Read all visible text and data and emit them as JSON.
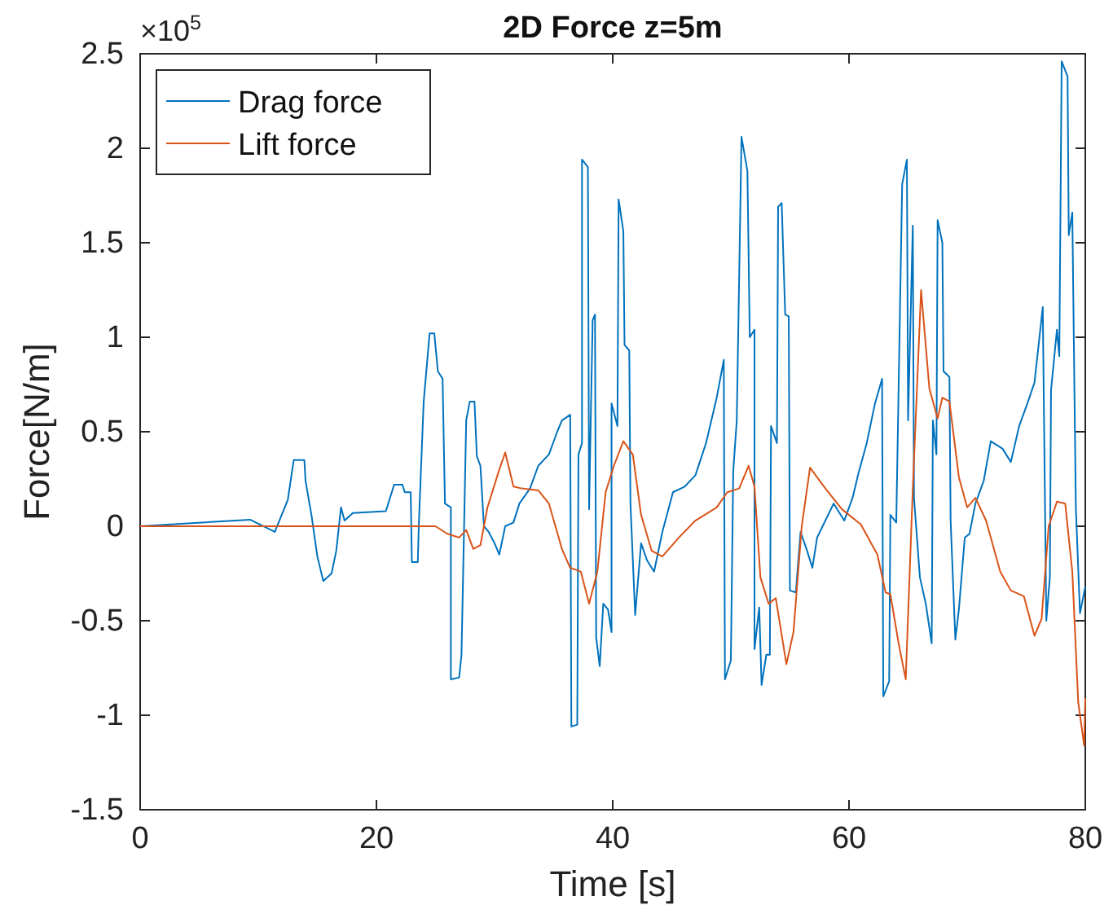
{
  "chart_data": {
    "type": "line",
    "title": "2D Force z=5m",
    "xlabel": "Time [s]",
    "ylabel": "Force[N/m]",
    "annotations": [
      "×10$^{5}$"
    ],
    "xlim": [
      0,
      80
    ],
    "xticks": [
      0,
      20,
      40,
      60,
      80
    ],
    "ylim": [
      -1.5,
      2.5
    ],
    "yticks": [
      -1.5,
      -1,
      -0.5,
      0,
      0.5,
      1,
      1.5,
      2,
      2.5
    ],
    "grid": false,
    "legend": "top left",
    "line_style": "solid",
    "marker": "none",
    "series": [
      {
        "name": "Drag force",
        "color": "#0072bd",
        "x": [
          0,
          9.3,
          11.4,
          12.5,
          12.5,
          13,
          13.9,
          14,
          14.5,
          15,
          15.5,
          16.2,
          16.6,
          17,
          17.3,
          18,
          20.8,
          21.5,
          22.2,
          22.4,
          22.9,
          23,
          23.5,
          23.6,
          24,
          24.5,
          24.9,
          25.2,
          25.6,
          25.8,
          26.3,
          26.3,
          27,
          27.2,
          27.6,
          27.9,
          28.3,
          28.5,
          28.8,
          29.1,
          29.5,
          30,
          30.4,
          30.9,
          31.6,
          32.1,
          33,
          33.7,
          34.6,
          35.3,
          35.7,
          36.4,
          36.5,
          37,
          37.1,
          37.4,
          37.4,
          37.9,
          38,
          38.3,
          38.5,
          38.6,
          38.9,
          39.2,
          39.6,
          39.9,
          39.9,
          40.4,
          40.5,
          40.9,
          41,
          41.4,
          41.5,
          41.9,
          42.4,
          42.9,
          43.5,
          44.2,
          45.1,
          46.1,
          47,
          47.9,
          48.8,
          49.4,
          49.5,
          50,
          50.2,
          50.5,
          50.9,
          51.4,
          51.6,
          52,
          52,
          52.4,
          52.6,
          53,
          53.3,
          53.4,
          53.9,
          54,
          54.3,
          54.6,
          54.9,
          55,
          55.5,
          55.9,
          56.4,
          56.9,
          57.3,
          58,
          58.7,
          59.6,
          60.3,
          60.8,
          61.5,
          62.2,
          62.8,
          62.9,
          63.4,
          63.5,
          64,
          64.5,
          64.9,
          65,
          65.4,
          65.5,
          66,
          66.5,
          67,
          67.1,
          67.4,
          67.5,
          67.9,
          68,
          68.5,
          68.6,
          69,
          69.3,
          69.8,
          70.2,
          70.7,
          71.4,
          72,
          73,
          73.7,
          74.4,
          75.1,
          75.7,
          76.4,
          76.7,
          77,
          77.1,
          77.6,
          77.8,
          78,
          78.5,
          78.6,
          78.9,
          79.2,
          79.55,
          80
        ],
        "values": [
          0,
          0.035,
          -0.03,
          0.14,
          0.14,
          0.35,
          0.35,
          0.24,
          0.06,
          -0.16,
          -0.29,
          -0.25,
          -0.13,
          0.1,
          0.03,
          0.07,
          0.08,
          0.22,
          0.22,
          0.18,
          0.18,
          -0.19,
          -0.19,
          0.03,
          0.66,
          1.02,
          1.02,
          0.82,
          0.78,
          0.12,
          0.1,
          -0.81,
          -0.8,
          -0.68,
          0.56,
          0.66,
          0.66,
          0.37,
          0.32,
          0,
          -0.03,
          -0.09,
          -0.15,
          0,
          0.02,
          0.12,
          0.2,
          0.32,
          0.38,
          0.5,
          0.56,
          0.59,
          -1.06,
          -1.05,
          0.38,
          0.44,
          1.94,
          1.9,
          0.09,
          1.09,
          1.12,
          -0.59,
          -0.74,
          -0.41,
          -0.44,
          -0.56,
          0.65,
          0.53,
          1.73,
          1.56,
          0.96,
          0.93,
          0.12,
          -0.47,
          -0.09,
          -0.18,
          -0.24,
          -0.03,
          0.18,
          0.21,
          0.27,
          0.44,
          0.68,
          0.88,
          -0.81,
          -0.71,
          0.29,
          0.56,
          2.06,
          1.88,
          1,
          1.04,
          -0.65,
          -0.43,
          -0.84,
          -0.68,
          -0.68,
          0.53,
          0.44,
          1.69,
          1.71,
          1.12,
          1.11,
          -0.34,
          -0.35,
          -0.03,
          -0.12,
          -0.22,
          -0.06,
          0.03,
          0.12,
          0.03,
          0.15,
          0.28,
          0.44,
          0.65,
          0.78,
          -0.9,
          -0.82,
          0.06,
          0.02,
          1.81,
          1.94,
          0.56,
          1.59,
          0.15,
          -0.27,
          -0.41,
          -0.62,
          0.56,
          0.38,
          1.62,
          1.5,
          0.82,
          0.79,
          0.03,
          -0.6,
          -0.44,
          -0.06,
          -0.04,
          0.12,
          0.24,
          0.45,
          0.41,
          0.34,
          0.53,
          0.65,
          0.76,
          1.16,
          -0.5,
          -0.27,
          0.72,
          1.04,
          0.9,
          2.46,
          2.38,
          1.54,
          1.66,
          0.1,
          -0.46,
          -0.32
        ]
      },
      {
        "name": "Lift force",
        "color": "#d95319",
        "x": [
          0,
          25,
          26,
          27,
          27.6,
          28.2,
          28.8,
          29.4,
          30.4,
          30.9,
          31.6,
          32.3,
          33.7,
          34.6,
          35.7,
          36.4,
          37.3,
          38,
          38.7,
          39.4,
          40.1,
          40.9,
          41.7,
          42.4,
          43.3,
          44.2,
          45.6,
          47,
          48.8,
          49.7,
          50.7,
          51.5,
          52,
          52.5,
          53.2,
          53.8,
          54.7,
          55.3,
          56,
          56.7,
          58,
          59.4,
          61,
          62.4,
          63.1,
          63.5,
          64.2,
          64.8,
          65.4,
          66.1,
          66.8,
          67.5,
          67.9,
          68.5,
          69.3,
          70,
          70.7,
          71.6,
          72.8,
          73.7,
          74.8,
          75.7,
          76.3,
          76.9,
          77.6,
          78.3,
          78.9,
          79.4,
          79.9,
          80
        ],
        "values": [
          0,
          0,
          -0.04,
          -0.06,
          -0.02,
          -0.12,
          -0.1,
          0.1,
          0.3,
          0.39,
          0.21,
          0.2,
          0.19,
          0.12,
          -0.12,
          -0.22,
          -0.24,
          -0.41,
          -0.24,
          0.18,
          0.32,
          0.45,
          0.38,
          0.06,
          -0.13,
          -0.16,
          -0.06,
          0.03,
          0.1,
          0.18,
          0.2,
          0.32,
          0.21,
          -0.27,
          -0.41,
          -0.38,
          -0.73,
          -0.56,
          0,
          0.31,
          0.2,
          0.09,
          0.01,
          -0.15,
          -0.35,
          -0.36,
          -0.62,
          -0.81,
          0.2,
          1.25,
          0.73,
          0.57,
          0.68,
          0.66,
          0.26,
          0.1,
          0.15,
          0.03,
          -0.24,
          -0.34,
          -0.37,
          -0.58,
          -0.49,
          0,
          0.13,
          0.12,
          -0.24,
          -0.93,
          -1.16,
          -0.91
        ]
      }
    ]
  }
}
